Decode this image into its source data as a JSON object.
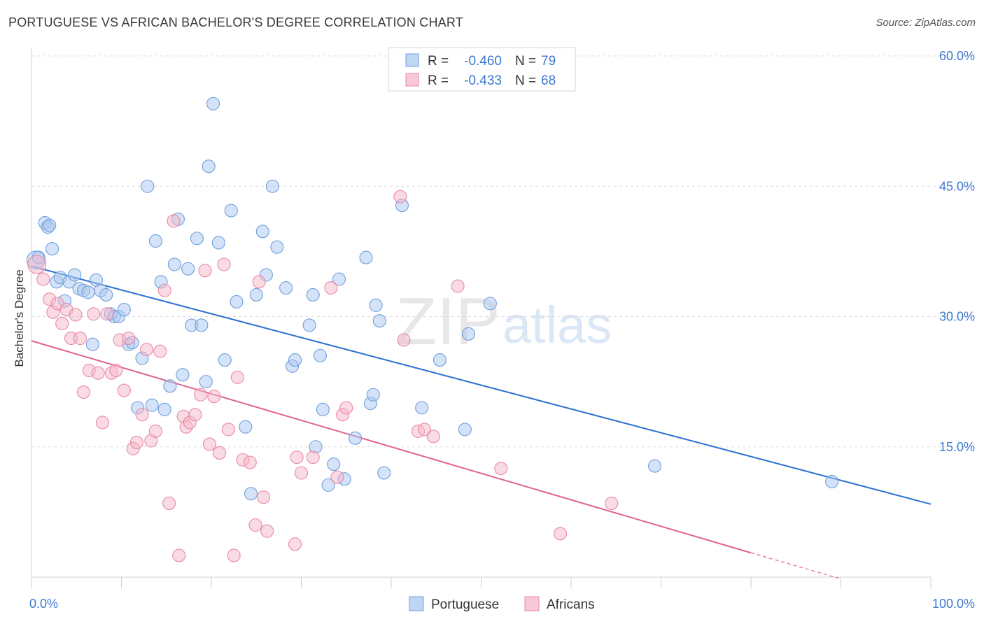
{
  "chart_data": {
    "type": "scatter",
    "title": "PORTUGUESE VS AFRICAN BACHELOR'S DEGREE CORRELATION CHART",
    "source": "Source: ZipAtlas.com",
    "watermark": {
      "zip": "ZIP",
      "atlas": "atlas"
    },
    "ylabel": "Bachelor's Degree",
    "xlim": [
      0,
      100
    ],
    "ylim": [
      0,
      60
    ],
    "x_tick_labels": {
      "min": "0.0%",
      "max": "100.0%"
    },
    "y_ticks": [
      {
        "value": 15,
        "label": "15.0%"
      },
      {
        "value": 30,
        "label": "30.0%"
      },
      {
        "value": 45,
        "label": "45.0%"
      },
      {
        "value": 60,
        "label": "60.0%"
      }
    ],
    "legend": {
      "rows": [
        {
          "r_label": "R =",
          "r_value": "-0.460",
          "n_label": "N =",
          "n_value": "79",
          "color": "#a9c8ef"
        },
        {
          "r_label": "R =",
          "r_value": "-0.433",
          "n_label": "N =",
          "n_value": "68",
          "color": "#f5b6c8"
        }
      ]
    },
    "series": [
      {
        "name": "Portuguese",
        "fill": "#a9c8ef",
        "stroke": "#6f9fdc",
        "line_color": "#2f72d0",
        "trend": {
          "x0": 0,
          "y0": 35.8,
          "x1": 100,
          "y1": 8.4
        },
        "points": [
          [
            0.5,
            36.5
          ],
          [
            0.8,
            36.8
          ],
          [
            1.5,
            40.8
          ],
          [
            1.8,
            40.3
          ],
          [
            2.0,
            40.5
          ],
          [
            2.3,
            37.8
          ],
          [
            2.8,
            34.0
          ],
          [
            3.2,
            34.5
          ],
          [
            3.7,
            31.8
          ],
          [
            4.2,
            34.0
          ],
          [
            4.8,
            34.8
          ],
          [
            5.3,
            33.2
          ],
          [
            5.8,
            33.0
          ],
          [
            6.3,
            32.8
          ],
          [
            6.8,
            26.8
          ],
          [
            7.2,
            34.2
          ],
          [
            7.7,
            33.0
          ],
          [
            8.3,
            32.5
          ],
          [
            8.8,
            30.3
          ],
          [
            9.2,
            30.0
          ],
          [
            9.7,
            30.0
          ],
          [
            10.3,
            30.8
          ],
          [
            10.8,
            26.8
          ],
          [
            11.2,
            27.0
          ],
          [
            11.8,
            19.5
          ],
          [
            12.3,
            25.2
          ],
          [
            12.9,
            45.0
          ],
          [
            13.4,
            19.8
          ],
          [
            13.8,
            38.7
          ],
          [
            14.4,
            34.0
          ],
          [
            14.8,
            19.3
          ],
          [
            15.4,
            22.0
          ],
          [
            15.9,
            36.0
          ],
          [
            16.3,
            41.2
          ],
          [
            16.8,
            23.3
          ],
          [
            17.4,
            35.5
          ],
          [
            17.8,
            29.0
          ],
          [
            18.4,
            39.0
          ],
          [
            18.9,
            29.0
          ],
          [
            19.4,
            22.5
          ],
          [
            19.7,
            47.3
          ],
          [
            20.2,
            54.5
          ],
          [
            20.8,
            38.5
          ],
          [
            21.5,
            25.0
          ],
          [
            22.2,
            42.2
          ],
          [
            22.8,
            31.7
          ],
          [
            23.8,
            17.3
          ],
          [
            24.4,
            9.6
          ],
          [
            25.0,
            32.5
          ],
          [
            25.7,
            39.8
          ],
          [
            26.1,
            34.8
          ],
          [
            26.8,
            45.0
          ],
          [
            27.3,
            38.0
          ],
          [
            28.3,
            33.3
          ],
          [
            29.0,
            24.3
          ],
          [
            29.3,
            25.0
          ],
          [
            30.9,
            29.0
          ],
          [
            31.3,
            32.5
          ],
          [
            31.6,
            15.0
          ],
          [
            32.1,
            25.5
          ],
          [
            32.4,
            19.3
          ],
          [
            33.0,
            10.6
          ],
          [
            33.6,
            13.0
          ],
          [
            34.2,
            34.3
          ],
          [
            34.8,
            11.3
          ],
          [
            36.0,
            16.0
          ],
          [
            37.2,
            36.8
          ],
          [
            37.7,
            20.0
          ],
          [
            38.0,
            21.0
          ],
          [
            38.3,
            31.3
          ],
          [
            38.7,
            29.5
          ],
          [
            39.2,
            12.0
          ],
          [
            41.2,
            42.8
          ],
          [
            43.4,
            19.5
          ],
          [
            45.4,
            25.0
          ],
          [
            48.2,
            17.0
          ],
          [
            48.6,
            28.0
          ],
          [
            51.0,
            31.5
          ],
          [
            69.3,
            12.8
          ],
          [
            89.0,
            11.0
          ]
        ]
      },
      {
        "name": "Africans",
        "fill": "#f5b6c8",
        "stroke": "#e88aa8",
        "line_color": "#e0638e",
        "trend": {
          "x0": 0,
          "y0": 27.2,
          "x1": 80,
          "y1": 2.8,
          "dash_x1": 90,
          "dash_y1": -0.2
        },
        "points": [
          [
            0.6,
            36.0
          ],
          [
            1.3,
            34.3
          ],
          [
            2.0,
            32.0
          ],
          [
            2.4,
            30.5
          ],
          [
            2.9,
            31.5
          ],
          [
            3.4,
            29.2
          ],
          [
            3.9,
            30.8
          ],
          [
            4.4,
            27.5
          ],
          [
            4.9,
            30.2
          ],
          [
            5.4,
            27.5
          ],
          [
            5.8,
            21.3
          ],
          [
            6.4,
            23.8
          ],
          [
            6.9,
            30.3
          ],
          [
            7.4,
            23.5
          ],
          [
            7.9,
            17.8
          ],
          [
            8.4,
            30.3
          ],
          [
            8.9,
            23.5
          ],
          [
            9.4,
            23.8
          ],
          [
            9.8,
            27.3
          ],
          [
            10.3,
            21.5
          ],
          [
            10.8,
            27.5
          ],
          [
            11.3,
            14.8
          ],
          [
            11.7,
            15.5
          ],
          [
            12.3,
            18.7
          ],
          [
            12.8,
            26.2
          ],
          [
            13.3,
            15.7
          ],
          [
            13.8,
            16.8
          ],
          [
            14.3,
            26.0
          ],
          [
            14.8,
            33.0
          ],
          [
            15.3,
            8.5
          ],
          [
            15.8,
            41.0
          ],
          [
            16.4,
            2.5
          ],
          [
            16.9,
            18.5
          ],
          [
            17.2,
            17.3
          ],
          [
            17.6,
            17.8
          ],
          [
            18.2,
            18.7
          ],
          [
            18.8,
            21.0
          ],
          [
            19.3,
            35.3
          ],
          [
            19.8,
            15.3
          ],
          [
            20.3,
            20.8
          ],
          [
            20.9,
            14.3
          ],
          [
            21.4,
            36.0
          ],
          [
            21.9,
            17.0
          ],
          [
            22.5,
            2.5
          ],
          [
            22.9,
            23.0
          ],
          [
            23.5,
            13.5
          ],
          [
            24.3,
            13.2
          ],
          [
            24.9,
            6.0
          ],
          [
            25.3,
            34.0
          ],
          [
            25.8,
            9.2
          ],
          [
            26.2,
            5.3
          ],
          [
            29.3,
            3.8
          ],
          [
            29.5,
            13.8
          ],
          [
            30.0,
            12.0
          ],
          [
            31.3,
            13.8
          ],
          [
            33.3,
            33.3
          ],
          [
            34.0,
            11.5
          ],
          [
            34.6,
            18.7
          ],
          [
            35.0,
            19.5
          ],
          [
            41.0,
            43.8
          ],
          [
            41.4,
            27.3
          ],
          [
            43.0,
            16.8
          ],
          [
            43.7,
            17.0
          ],
          [
            44.7,
            16.2
          ],
          [
            47.4,
            33.5
          ],
          [
            52.2,
            12.5
          ],
          [
            58.8,
            5.0
          ],
          [
            64.5,
            8.5
          ]
        ]
      }
    ]
  }
}
